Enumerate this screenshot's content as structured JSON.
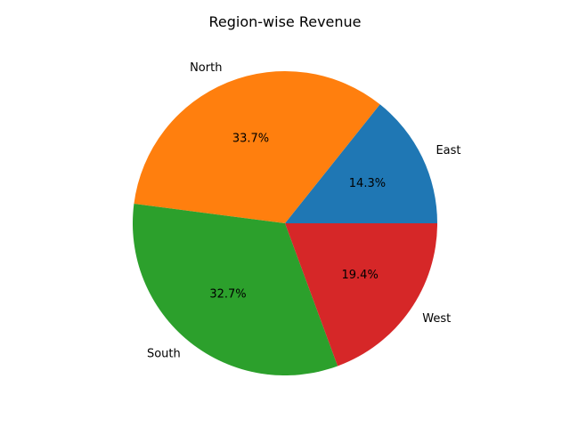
{
  "chart_data": {
    "type": "pie",
    "title": "Region-wise Revenue",
    "categories": [
      "East",
      "North",
      "South",
      "West"
    ],
    "values": [
      14.3,
      33.7,
      32.7,
      19.4
    ],
    "value_labels": [
      "14.3%",
      "33.7%",
      "32.7%",
      "19.4%"
    ],
    "colors": [
      "#1f77b4",
      "#ff7f0e",
      "#2ca02c",
      "#d62728"
    ],
    "start_angle_deg": 0,
    "direction": "counterclockwise",
    "legend": "none"
  }
}
